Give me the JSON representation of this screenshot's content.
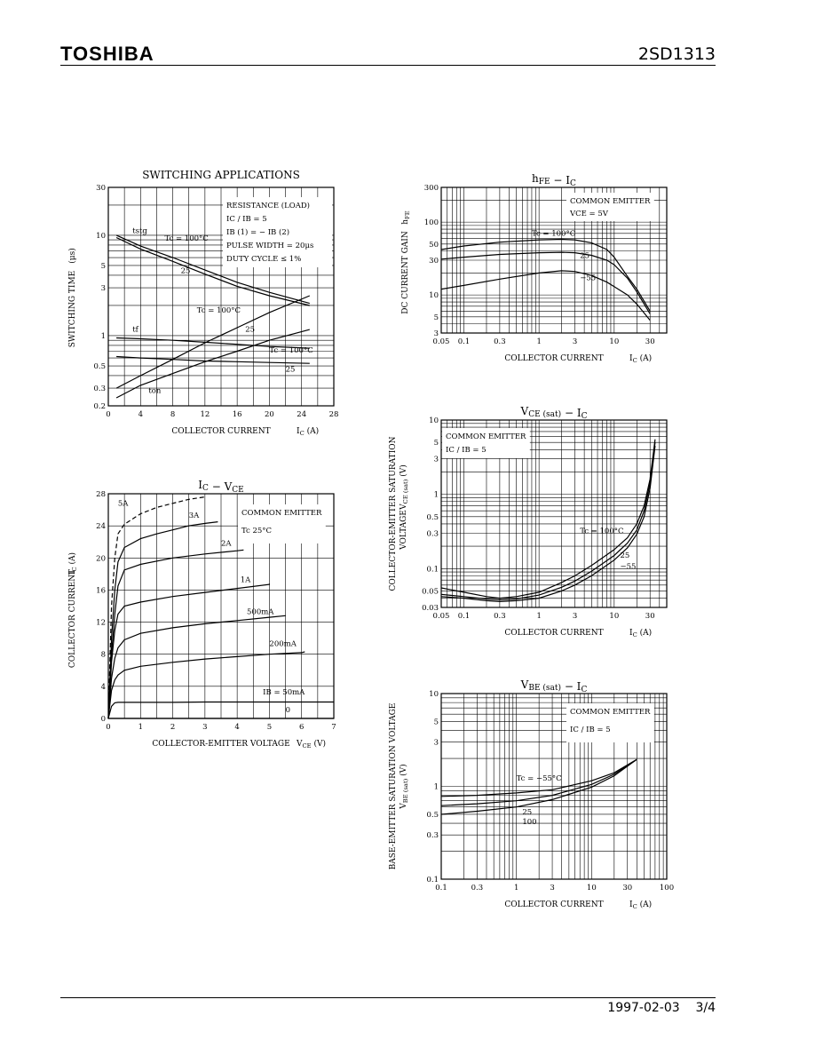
{
  "header": {
    "brand": "TOSHIBA",
    "part_number": "2SD1313"
  },
  "footer": {
    "date": "1997-02-03",
    "page": "3/4"
  },
  "chart_data": [
    {
      "id": "sw",
      "type": "line",
      "title": "SWITCHING APPLICATIONS",
      "xlabel": "COLLECTOR CURRENT",
      "xlabel_sym": "I",
      "xlabel_sub": "C",
      "xlabel_unit": "(A)",
      "ylabel": "SWITCHING TIME",
      "ylabel_unit": "(μs)",
      "xscale": "linear",
      "yscale": "log",
      "xlim": [
        0,
        28
      ],
      "ylim": [
        0.2,
        30
      ],
      "xticks": [
        0,
        4,
        8,
        12,
        16,
        20,
        24,
        28
      ],
      "xtick_labels": [
        "0",
        "4",
        "8",
        "12",
        "16",
        "20",
        "24",
        "28"
      ],
      "yticks": [
        0.2,
        0.3,
        0.5,
        1,
        3,
        5,
        10,
        30
      ],
      "ytick_labels": [
        "0.2",
        "0.3",
        "0.5",
        "1",
        "3",
        "5",
        "10",
        "30"
      ],
      "legend": [
        "RESISTANCE (LOAD)",
        "IC / IB = 5",
        "IB (1) = − IB (2)",
        "PULSE WIDTH = 20μs",
        "DUTY CYCLE ≤ 1%"
      ],
      "series": [
        {
          "x": [
            1,
            4,
            8,
            12,
            16,
            20,
            25
          ],
          "y": [
            10,
            7.8,
            6,
            4.5,
            3.4,
            2.7,
            2.1
          ]
        },
        {
          "x": [
            1,
            4,
            8,
            12,
            16,
            20,
            25
          ],
          "y": [
            9.5,
            7.3,
            5.5,
            4.1,
            3.1,
            2.5,
            2.0
          ]
        },
        {
          "x": [
            1,
            4,
            8,
            12,
            16,
            20,
            25
          ],
          "y": [
            0.95,
            0.93,
            0.9,
            0.86,
            0.82,
            0.78,
            0.75
          ]
        },
        {
          "x": [
            1,
            4,
            8,
            12,
            16,
            20,
            25
          ],
          "y": [
            0.62,
            0.6,
            0.58,
            0.56,
            0.55,
            0.54,
            0.53
          ]
        },
        {
          "x": [
            1,
            4,
            8,
            12,
            16,
            20,
            25
          ],
          "y": [
            0.3,
            0.4,
            0.58,
            0.85,
            1.2,
            1.7,
            2.5
          ]
        },
        {
          "x": [
            1,
            4,
            8,
            12,
            16,
            20,
            25
          ],
          "y": [
            0.24,
            0.32,
            0.42,
            0.55,
            0.7,
            0.9,
            1.15
          ]
        }
      ],
      "annotations": [
        {
          "text": "tstg",
          "x": 3,
          "y": 10.5
        },
        {
          "text": "Tc = 100°C",
          "x": 7,
          "y": 8.8
        },
        {
          "text": "25",
          "x": 9,
          "y": 4.2
        },
        {
          "text": "tf",
          "x": 3,
          "y": 1.1
        },
        {
          "text": "Tc = 100°C",
          "x": 11,
          "y": 1.7
        },
        {
          "text": "25",
          "x": 17,
          "y": 1.1
        },
        {
          "text": "Tc = 100°C",
          "x": 20,
          "y": 0.68
        },
        {
          "text": "25",
          "x": 22,
          "y": 0.44
        },
        {
          "text": "ton",
          "x": 5,
          "y": 0.27
        }
      ]
    },
    {
      "id": "icvce",
      "type": "line",
      "title": "IC − VCE",
      "xlabel": "COLLECTOR-EMITTER VOLTAGE",
      "xlabel_sym": "V",
      "xlabel_sub": "CE",
      "xlabel_unit": "(V)",
      "ylabel": "COLLECTOR CURRENT",
      "ylabel_sym": "I",
      "ylabel_sub": "C",
      "ylabel_unit": "(A)",
      "xscale": "linear",
      "yscale": "linear",
      "xlim": [
        0,
        7
      ],
      "ylim": [
        0,
        28
      ],
      "xticks": [
        0,
        1,
        2,
        3,
        4,
        5,
        6,
        7
      ],
      "xtick_labels": [
        "0",
        "1",
        "2",
        "3",
        "4",
        "5",
        "6",
        "7"
      ],
      "yticks": [
        0,
        4,
        8,
        12,
        16,
        20,
        24,
        28
      ],
      "ytick_labels": [
        "0",
        "4",
        "8",
        "12",
        "16",
        "20",
        "24",
        "28"
      ],
      "legend": [
        "COMMON EMITTER",
        "Tc  25°C"
      ],
      "series": [
        {
          "name": "5A",
          "x": [
            0,
            0.1,
            0.2,
            0.3,
            0.5,
            1,
            1.5,
            2,
            2.5,
            3
          ],
          "y": [
            0,
            14,
            20,
            23,
            24.2,
            25.5,
            26.3,
            26.8,
            27.3,
            27.6
          ]
        },
        {
          "name": "3A",
          "x": [
            0,
            0.1,
            0.2,
            0.3,
            0.5,
            1,
            1.5,
            2,
            2.5,
            3,
            3.4
          ],
          "y": [
            0,
            10,
            16,
            19.5,
            21.3,
            22.4,
            23,
            23.5,
            24,
            24.3,
            24.5
          ]
        },
        {
          "name": "2A",
          "x": [
            0,
            0.1,
            0.2,
            0.3,
            0.5,
            1,
            2,
            3,
            4,
            4.2
          ],
          "y": [
            0,
            8,
            13,
            16.5,
            18.5,
            19.2,
            20,
            20.5,
            20.9,
            21
          ]
        },
        {
          "name": "1A",
          "x": [
            0,
            0.1,
            0.2,
            0.3,
            0.5,
            1,
            2,
            3,
            4,
            5,
            5
          ],
          "y": [
            0,
            7,
            11,
            13,
            14,
            14.5,
            15.2,
            15.7,
            16.2,
            16.7,
            16.8
          ]
        },
        {
          "name": "500mA",
          "x": [
            0,
            0.1,
            0.2,
            0.3,
            0.5,
            1,
            2,
            3,
            4,
            5,
            5.5
          ],
          "y": [
            0,
            5,
            7.5,
            8.8,
            9.8,
            10.6,
            11.3,
            11.8,
            12.2,
            12.6,
            12.8
          ]
        },
        {
          "name": "200mA",
          "x": [
            0,
            0.1,
            0.2,
            0.3,
            0.5,
            1,
            2,
            3,
            4,
            5,
            6,
            6.1
          ],
          "y": [
            0,
            3.5,
            4.8,
            5.4,
            6,
            6.5,
            7,
            7.4,
            7.7,
            8,
            8.2,
            8.3
          ]
        },
        {
          "name": "IB = 50mA",
          "x": [
            0,
            0.1,
            0.2,
            0.3,
            0.5,
            1,
            2,
            3,
            4,
            5,
            6,
            7
          ],
          "y": [
            0,
            1.5,
            1.95,
            2,
            2,
            2,
            2,
            2.05,
            2.05,
            2.05,
            2.05,
            2.05
          ]
        },
        {
          "name": "0",
          "x": [
            0,
            7
          ],
          "y": [
            0,
            0
          ]
        }
      ],
      "series_labels": [
        {
          "text": "5A",
          "x": 0.3,
          "y": 26.5
        },
        {
          "text": "3A",
          "x": 2.5,
          "y": 25
        },
        {
          "text": "2A",
          "x": 3.5,
          "y": 21.5
        },
        {
          "text": "1A",
          "x": 4.1,
          "y": 17
        },
        {
          "text": "500mA",
          "x": 4.3,
          "y": 13
        },
        {
          "text": "200mA",
          "x": 5,
          "y": 9
        },
        {
          "text": "IB = 50mA",
          "x": 4.8,
          "y": 3
        },
        {
          "text": "0",
          "x": 5.5,
          "y": 0.8
        }
      ]
    },
    {
      "id": "hfe",
      "type": "line",
      "title": "hFE − IC",
      "xlabel": "COLLECTOR CURRENT",
      "xlabel_sym": "I",
      "xlabel_sub": "C",
      "xlabel_unit": "(A)",
      "ylabel": "DC CURRENT GAIN",
      "ylabel_sym": "h",
      "ylabel_sub": "FE",
      "xscale": "log",
      "yscale": "log",
      "xlim": [
        0.05,
        50
      ],
      "ylim": [
        3,
        300
      ],
      "xticks": [
        0.05,
        0.1,
        0.3,
        1,
        3,
        10,
        30
      ],
      "xtick_labels": [
        "0.05",
        "0.1",
        "0.3",
        "1",
        "3",
        "10",
        "30"
      ],
      "yticks": [
        3,
        5,
        10,
        30,
        50,
        100,
        300
      ],
      "ytick_labels": [
        "3",
        "5",
        "10",
        "30",
        "50",
        "100",
        "300"
      ],
      "legend": [
        "COMMON EMITTER",
        "VCE = 5V"
      ],
      "series": [
        {
          "name": "Tc = 100°C",
          "x": [
            0.05,
            0.1,
            0.3,
            1,
            2,
            3,
            5,
            8,
            10,
            15,
            20,
            30
          ],
          "y": [
            42,
            47,
            53,
            57,
            58,
            57,
            52,
            42,
            33,
            18,
            12,
            6
          ]
        },
        {
          "name": "25",
          "x": [
            0.05,
            0.1,
            0.3,
            1,
            2,
            3,
            5,
            8,
            10,
            15,
            20,
            30
          ],
          "y": [
            31,
            33,
            36,
            38,
            38.5,
            38,
            35,
            30,
            26,
            17,
            11,
            5.5
          ]
        },
        {
          "name": "−55",
          "x": [
            0.05,
            0.1,
            0.3,
            1,
            2,
            3,
            5,
            8,
            10,
            15,
            20,
            30
          ],
          "y": [
            12,
            13.5,
            16.5,
            20,
            21.5,
            21,
            18.5,
            15,
            13,
            10,
            7.5,
            4.5
          ]
        }
      ],
      "series_labels": [
        {
          "text": "Tc = 100°C",
          "x": 0.8,
          "y": 65
        },
        {
          "text": "25",
          "x": 3.5,
          "y": 32
        },
        {
          "text": "−55",
          "x": 3.5,
          "y": 16
        }
      ]
    },
    {
      "id": "vcesat",
      "type": "line",
      "title": "VCE (sat) − IC",
      "xlabel": "COLLECTOR CURRENT",
      "xlabel_sym": "I",
      "xlabel_sub": "C",
      "xlabel_unit": "(A)",
      "ylabel": "COLLECTOR-EMITTER SATURATION VOLTAGE",
      "ylabel_sym": "V",
      "ylabel_sub": "CE (sat)",
      "ylabel_unit": "(V)",
      "xscale": "log",
      "yscale": "log",
      "xlim": [
        0.05,
        50
      ],
      "ylim": [
        0.03,
        10
      ],
      "xticks": [
        0.05,
        0.1,
        0.3,
        1,
        3,
        10,
        30
      ],
      "xtick_labels": [
        "0.05",
        "0.1",
        "0.3",
        "1",
        "3",
        "10",
        "30"
      ],
      "yticks": [
        0.03,
        0.05,
        0.1,
        0.3,
        0.5,
        1,
        3,
        5,
        10
      ],
      "ytick_labels": [
        "0.03",
        "0.05",
        "0.1",
        "0.3",
        "0.5",
        "1",
        "3",
        "5",
        "10"
      ],
      "legend": [
        "COMMON EMITTER",
        "IC / IB = 5"
      ],
      "series": [
        {
          "name": "Tc = 100°C",
          "x": [
            0.05,
            0.1,
            0.2,
            0.3,
            0.5,
            1,
            2,
            3,
            5,
            10,
            15,
            20,
            25,
            30,
            35
          ],
          "y": [
            0.055,
            0.048,
            0.042,
            0.04,
            0.042,
            0.048,
            0.065,
            0.08,
            0.11,
            0.18,
            0.26,
            0.4,
            0.7,
            1.6,
            5.5
          ]
        },
        {
          "name": "25",
          "x": [
            0.05,
            0.1,
            0.2,
            0.3,
            0.5,
            1,
            2,
            3,
            5,
            10,
            15,
            20,
            25,
            30,
            35
          ],
          "y": [
            0.045,
            0.042,
            0.039,
            0.038,
            0.039,
            0.044,
            0.056,
            0.068,
            0.092,
            0.15,
            0.22,
            0.33,
            0.6,
            1.4,
            5
          ]
        },
        {
          "name": "−55",
          "x": [
            0.05,
            0.1,
            0.2,
            0.3,
            0.5,
            1,
            2,
            3,
            5,
            10,
            15,
            20,
            25,
            30,
            35
          ],
          "y": [
            0.042,
            0.04,
            0.037,
            0.036,
            0.037,
            0.04,
            0.05,
            0.06,
            0.08,
            0.13,
            0.19,
            0.29,
            0.5,
            1.2,
            4.5
          ]
        }
      ],
      "series_labels": [
        {
          "text": "Tc = 100°C",
          "x": 3.5,
          "y": 0.3
        },
        {
          "text": "25",
          "x": 12,
          "y": 0.14
        },
        {
          "text": "−55",
          "x": 12,
          "y": 0.1
        }
      ]
    },
    {
      "id": "vbesat",
      "type": "line",
      "title": "VBE (sat) − IC",
      "xlabel": "COLLECTOR CURRENT",
      "xlabel_sym": "I",
      "xlabel_sub": "C",
      "xlabel_unit": "(A)",
      "ylabel": "BASE-EMITTER SATURATION VOLTAGE",
      "ylabel_sym": "V",
      "ylabel_sub": "BE (sat)",
      "ylabel_unit": "(V)",
      "xscale": "log",
      "yscale": "log",
      "xlim": [
        0.1,
        100
      ],
      "ylim": [
        0.1,
        10
      ],
      "xticks": [
        0.1,
        0.3,
        1,
        3,
        10,
        30,
        100
      ],
      "xtick_labels": [
        "0.1",
        "0.3",
        "1",
        "3",
        "10",
        "30",
        "100"
      ],
      "yticks": [
        0.1,
        0.3,
        0.5,
        1,
        3,
        5,
        10
      ],
      "ytick_labels": [
        "0.1",
        "0.3",
        "0.5",
        "1",
        "3",
        "5",
        "10"
      ],
      "legend": [
        "COMMON EMITTER",
        "IC / IB = 5"
      ],
      "series": [
        {
          "name": "Tc = −55°C",
          "x": [
            0.1,
            0.3,
            1,
            3,
            10,
            20,
            40
          ],
          "y": [
            0.78,
            0.8,
            0.85,
            0.92,
            1.15,
            1.4,
            1.95
          ]
        },
        {
          "name": "25",
          "x": [
            0.1,
            0.3,
            1,
            3,
            10,
            20,
            40
          ],
          "y": [
            0.62,
            0.65,
            0.7,
            0.8,
            1.05,
            1.35,
            1.95
          ]
        },
        {
          "name": "100",
          "x": [
            0.1,
            0.3,
            1,
            3,
            10,
            20,
            40
          ],
          "y": [
            0.5,
            0.54,
            0.6,
            0.72,
            0.98,
            1.3,
            1.95
          ]
        }
      ],
      "series_labels": [
        {
          "text": "Tc = −55°C",
          "x": 1,
          "y": 1.15
        },
        {
          "text": "25",
          "x": 1.2,
          "y": 0.5
        },
        {
          "text": "100",
          "x": 1.2,
          "y": 0.39
        }
      ]
    }
  ]
}
